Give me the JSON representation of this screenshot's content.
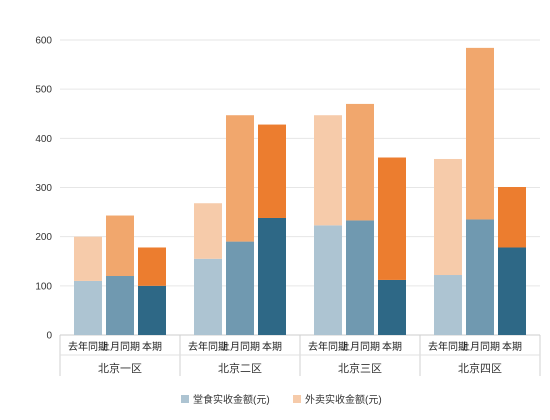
{
  "chart_data": {
    "type": "bar",
    "stacked": true,
    "grid": true,
    "legend_position": "bottom",
    "ylim": [
      0,
      600
    ],
    "yticks": [
      0,
      100,
      200,
      300,
      400,
      500,
      600
    ],
    "groups": [
      {
        "name": "北京一区",
        "bars": [
          {
            "label": "去年同期",
            "dine_in": 110,
            "takeout": 90
          },
          {
            "label": "上月同期",
            "dine_in": 120,
            "takeout": 123
          },
          {
            "label": "本期",
            "dine_in": 100,
            "takeout": 78
          }
        ]
      },
      {
        "name": "北京二区",
        "bars": [
          {
            "label": "去年同期",
            "dine_in": 155,
            "takeout": 113
          },
          {
            "label": "上月同期",
            "dine_in": 190,
            "takeout": 257
          },
          {
            "label": "本期",
            "dine_in": 238,
            "takeout": 190
          }
        ]
      },
      {
        "name": "北京三区",
        "bars": [
          {
            "label": "去年同期",
            "dine_in": 223,
            "takeout": 224
          },
          {
            "label": "上月同期",
            "dine_in": 233,
            "takeout": 237
          },
          {
            "label": "本期",
            "dine_in": 112,
            "takeout": 249
          }
        ]
      },
      {
        "name": "北京四区",
        "bars": [
          {
            "label": "去年同期",
            "dine_in": 122,
            "takeout": 236
          },
          {
            "label": "上月同期",
            "dine_in": 235,
            "takeout": 349
          },
          {
            "label": "本期",
            "dine_in": 178,
            "takeout": 123
          }
        ]
      }
    ],
    "series": [
      {
        "name": "堂食实收金额(元)",
        "key": "dine_in",
        "colors": [
          "#adc4d2",
          "#7099b0",
          "#2e6886"
        ]
      },
      {
        "name": "外卖实收金额(元)",
        "key": "takeout",
        "colors": [
          "#f6cbaa",
          "#f1a76d",
          "#ec7d2f"
        ]
      }
    ]
  }
}
